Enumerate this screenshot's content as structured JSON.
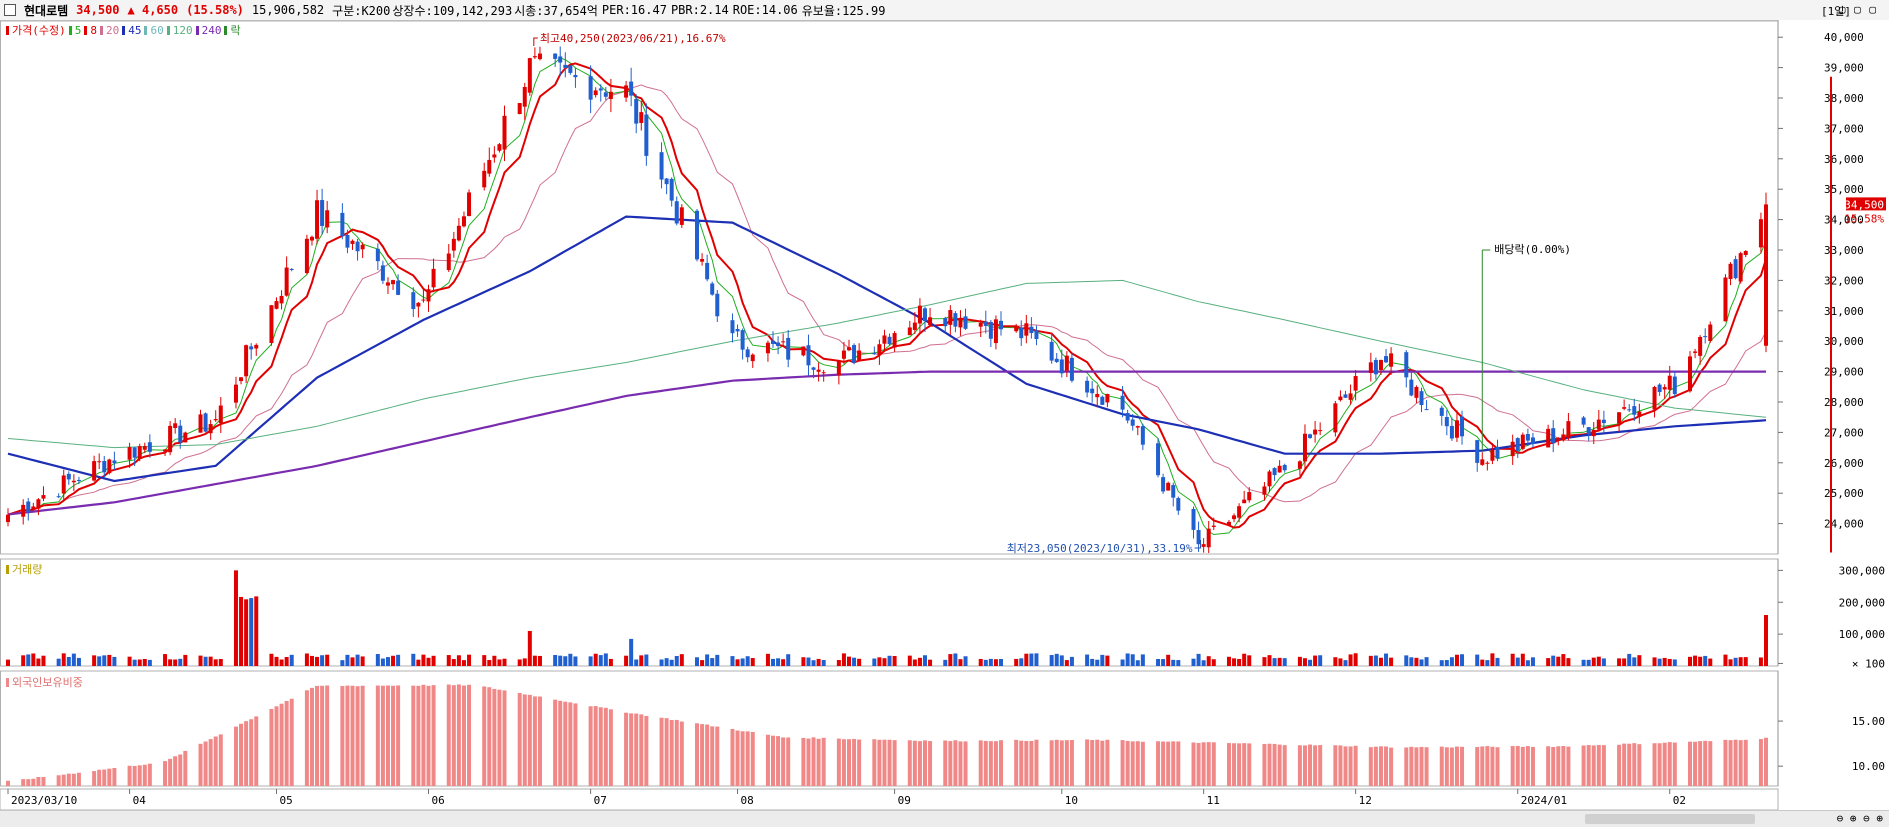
{
  "header": {
    "stock_name": "현대로템",
    "price": "34,500",
    "change": "▲ 4,650",
    "change_pct": "(15.58%)",
    "volume": "15,906,582",
    "category": "구분:K200",
    "listed_shares": "상장수:109,142,293",
    "market_cap": "시총:37,654억",
    "per": "PER:16.47",
    "pbr": "PBR:2.14",
    "roe": "ROE:14.06",
    "float_ratio": "유보율:125.99",
    "period": "[1일]",
    "window_buttons": "▢ ▢ ▢"
  },
  "price_legend": [
    {
      "label": "가격(수정)",
      "color": "#e00000"
    },
    {
      "label": "5",
      "color": "#1fae1f"
    },
    {
      "label": "8",
      "color": "#e00000"
    },
    {
      "label": "20",
      "color": "#d07090"
    },
    {
      "label": "45",
      "color": "#1d2fb5"
    },
    {
      "label": "60",
      "color": "#6fb8b8"
    },
    {
      "label": "120",
      "color": "#58b080"
    },
    {
      "label": "240",
      "color": "#7a2cb0"
    },
    {
      "label": "락",
      "color": "#2a8a2a"
    }
  ],
  "volume_legend": {
    "label": "거래량",
    "color": "#b8a000"
  },
  "foreign_legend": {
    "label": "외국인보유비중",
    "color": "#f08888"
  },
  "annotations": {
    "high": "최고40,250(2023/06/21),16.67%",
    "low": "최저23,050(2023/10/31),33.19%",
    "dividend": "배당락(0.00%)"
  },
  "current_price_tag": {
    "price": "34,500",
    "pct": "15.58%"
  },
  "colors": {
    "up": "#e00000",
    "down": "#1f5fd0",
    "ma5": "#1fae1f",
    "ma8": "#e00000",
    "ma20": "#d07090",
    "ma45": "#1d2fb5",
    "ma60": "#6fb8b8",
    "ma120": "#58b080",
    "ma240": "#7a2cb0",
    "foreign": "#f08888"
  },
  "chart_data": [
    {
      "type": "candlestick",
      "title": "현대로템",
      "x": [
        "2023/03/10",
        "2023/03/31",
        "2023/04/20",
        "2023/05/10",
        "2023/05/31",
        "2023/06/21",
        "2023/07/10",
        "2023/07/31",
        "2023/08/21",
        "2023/09/08",
        "2023/09/27",
        "2023/10/16",
        "2023/10/31",
        "2023/11/17",
        "2023/12/06",
        "2023/12/26",
        "2024/01/15",
        "2024/02/02",
        "2024/02/20"
      ],
      "close": [
        24300,
        26200,
        27400,
        34200,
        31200,
        39000,
        38200,
        30000,
        29300,
        31100,
        30200,
        27800,
        23200,
        25800,
        29500,
        26200,
        27200,
        28600,
        34500
      ],
      "x_ticks": [
        "2023/03/10",
        "04",
        "05",
        "06",
        "07",
        "08",
        "09",
        "10",
        "11",
        "12",
        "2024/01",
        "02"
      ],
      "y_ticks": [
        "40,000",
        "39,000",
        "38,000",
        "37,000",
        "36,000",
        "35,000",
        "34,000",
        "33,000",
        "32,000",
        "31,000",
        "30,000",
        "29,000",
        "28,000",
        "27,000",
        "26,000",
        "25,000",
        "24,000"
      ],
      "ylim": [
        23000,
        40500
      ],
      "series": [
        {
          "name": "45",
          "values": [
            26300,
            25400,
            25900,
            28800,
            30700,
            32300,
            34100,
            33900,
            32200,
            30600,
            28600,
            27600,
            27100,
            26300,
            26300,
            26400,
            26900,
            27200,
            27400
          ]
        },
        {
          "name": "240",
          "values": [
            24300,
            24700,
            25300,
            25900,
            26700,
            27500,
            28200,
            28700,
            28900,
            29000,
            29000,
            29000,
            29000,
            29000,
            29000,
            29000,
            29000,
            29000,
            29000
          ]
        },
        {
          "name": "120",
          "values": [
            26800,
            26500,
            26600,
            27200,
            28100,
            28800,
            29300,
            30000,
            30600,
            31200,
            31900,
            32000,
            31300,
            30700,
            30000,
            29300,
            28400,
            27800,
            27500
          ]
        }
      ]
    },
    {
      "type": "bar",
      "title": "거래량",
      "x": [
        "2023/03/10",
        "2023/04/24",
        "2023/06/21",
        "2023/07/11",
        "2023/12/01",
        "2024/02/20"
      ],
      "values": [
        20000,
        300000,
        110000,
        85000,
        40000,
        160000
      ],
      "y_ticks": [
        "300,000",
        "200,000",
        "100,000",
        "× 100"
      ],
      "ylim": [
        0,
        320000
      ]
    },
    {
      "type": "bar",
      "title": "외국인보유비중",
      "x": [
        "2023/03/10",
        "2023/04/10",
        "2023/05/10",
        "2023/06/10",
        "2023/07/10",
        "2023/08/10",
        "2023/09/10",
        "2023/10/10",
        "2023/11/10",
        "2023/12/10",
        "2024/01/10",
        "2024/02/10",
        "2024/02/20"
      ],
      "values": [
        8.3,
        10.5,
        18.9,
        19.0,
        16.0,
        13.2,
        12.8,
        12.9,
        12.5,
        12.1,
        12.2,
        12.8,
        13.1
      ],
      "y_ticks": [
        "15.00",
        "10.00"
      ],
      "ylim": [
        7.8,
        20
      ]
    }
  ]
}
